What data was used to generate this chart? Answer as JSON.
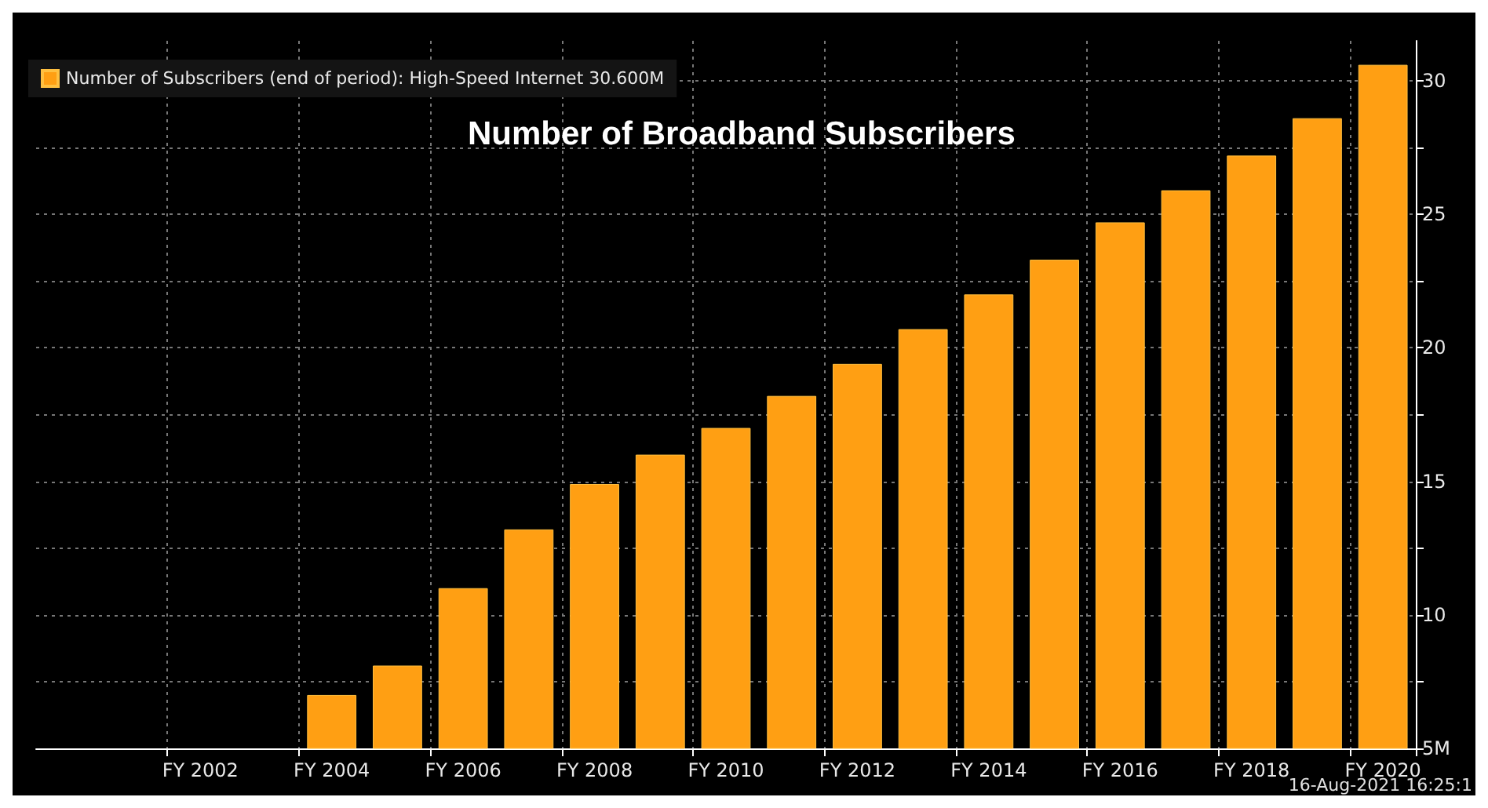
{
  "chart_data": {
    "type": "bar",
    "title": "Number of Broadband Subscribers",
    "categories": [
      null,
      null,
      "FY 2002",
      null,
      "FY 2004",
      null,
      "FY 2006",
      null,
      "FY 2008",
      null,
      "FY 2010",
      null,
      "FY 2012",
      null,
      "FY 2014",
      null,
      "FY 2016",
      null,
      "FY 2018",
      null,
      "FY 2020"
    ],
    "series": [
      {
        "name": "Number of Subscribers (end of period): High-Speed Internet 30.600M",
        "color": "#ff9f13",
        "values": [
          null,
          null,
          null,
          null,
          7.0,
          8.1,
          11.0,
          13.2,
          14.9,
          16.0,
          17.0,
          18.2,
          19.4,
          20.7,
          22.0,
          23.3,
          24.7,
          25.9,
          27.2,
          28.6,
          30.6
        ]
      }
    ],
    "ylim": [
      5,
      31.5
    ],
    "yticks": [
      {
        "value": 5,
        "label": "5M"
      },
      {
        "value": 7.5,
        "label": null
      },
      10,
      {
        "value": 12.5,
        "label": null
      },
      15,
      {
        "value": 17.5,
        "label": null
      },
      20,
      {
        "value": 22.5,
        "label": null
      },
      25,
      {
        "value": 27.5,
        "label": null
      },
      30
    ],
    "grid": true,
    "legend": "top left",
    "annotations": [
      "16-Aug-2021 16:25:1"
    ]
  }
}
